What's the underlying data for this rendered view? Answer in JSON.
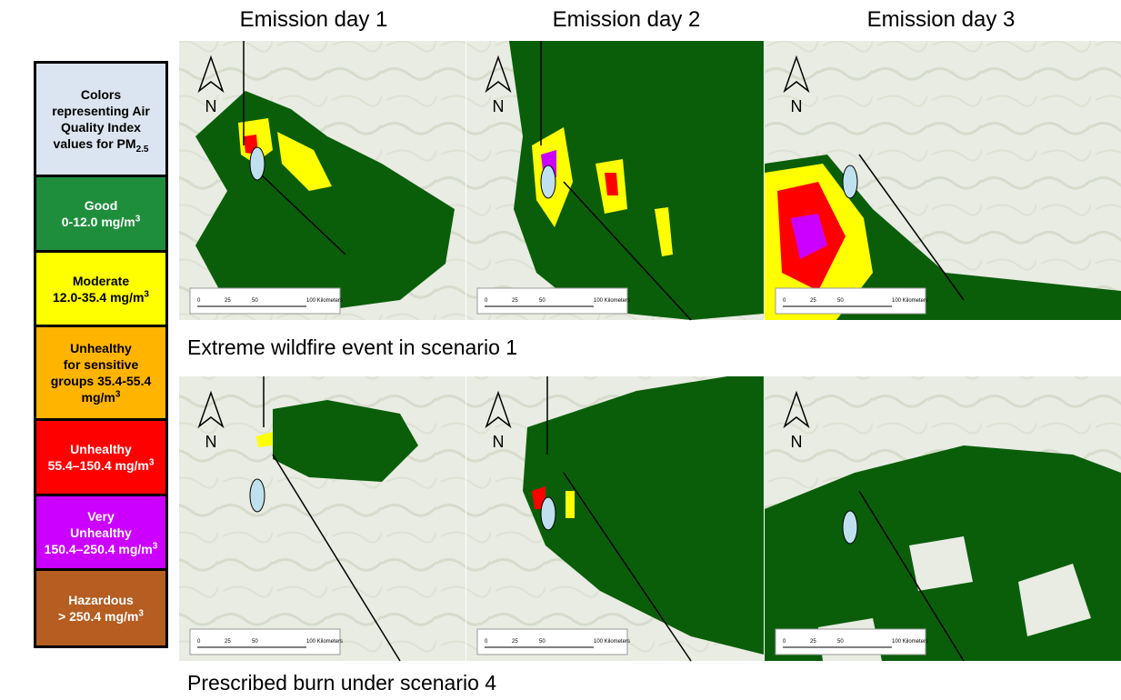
{
  "columns": [
    "Emission day 1",
    "Emission day 2",
    "Emission day 3"
  ],
  "rows": [
    "Extreme wildfire event in scenario 1",
    "Prescribed burn under scenario 4"
  ],
  "north": "N",
  "scale": [
    "0",
    "25",
    "50",
    "100 Kilometers"
  ],
  "legend": {
    "title": {
      "lines": [
        "Colors",
        "representing Air",
        "Quality Index",
        "values for PM"
      ],
      "sub": "2.5"
    },
    "entries": [
      {
        "lines": [
          "Good",
          "0-12.0 mg/m"
        ],
        "sup": "3",
        "color": "#1f8e3c",
        "text_color": "#ffffff"
      },
      {
        "lines": [
          "Moderate",
          "12.0-35.4 mg/m"
        ],
        "sup": "3",
        "color": "#ffff00",
        "text_color": "#000000"
      },
      {
        "lines": [
          "Unhealthy",
          "for sensitive",
          "groups 35.4-55.4",
          "mg/m"
        ],
        "sup": "3",
        "color": "#ffb400",
        "text_color": "#000000"
      },
      {
        "lines": [
          "Unhealthy",
          "55.4–150.4 mg/m"
        ],
        "sup": "3",
        "color": "#ff0000",
        "text_color": "#ffffff"
      },
      {
        "lines": [
          "Very",
          "Unhealthy",
          "150.4–250.4 mg/m"
        ],
        "sup": "3",
        "color": "#cc00ff",
        "text_color": "#ffffff"
      },
      {
        "lines": [
          "Hazardous",
          "> 250.4 mg/m"
        ],
        "sup": "3",
        "color": "#b65d21",
        "text_color": "#ffffff"
      }
    ]
  }
}
